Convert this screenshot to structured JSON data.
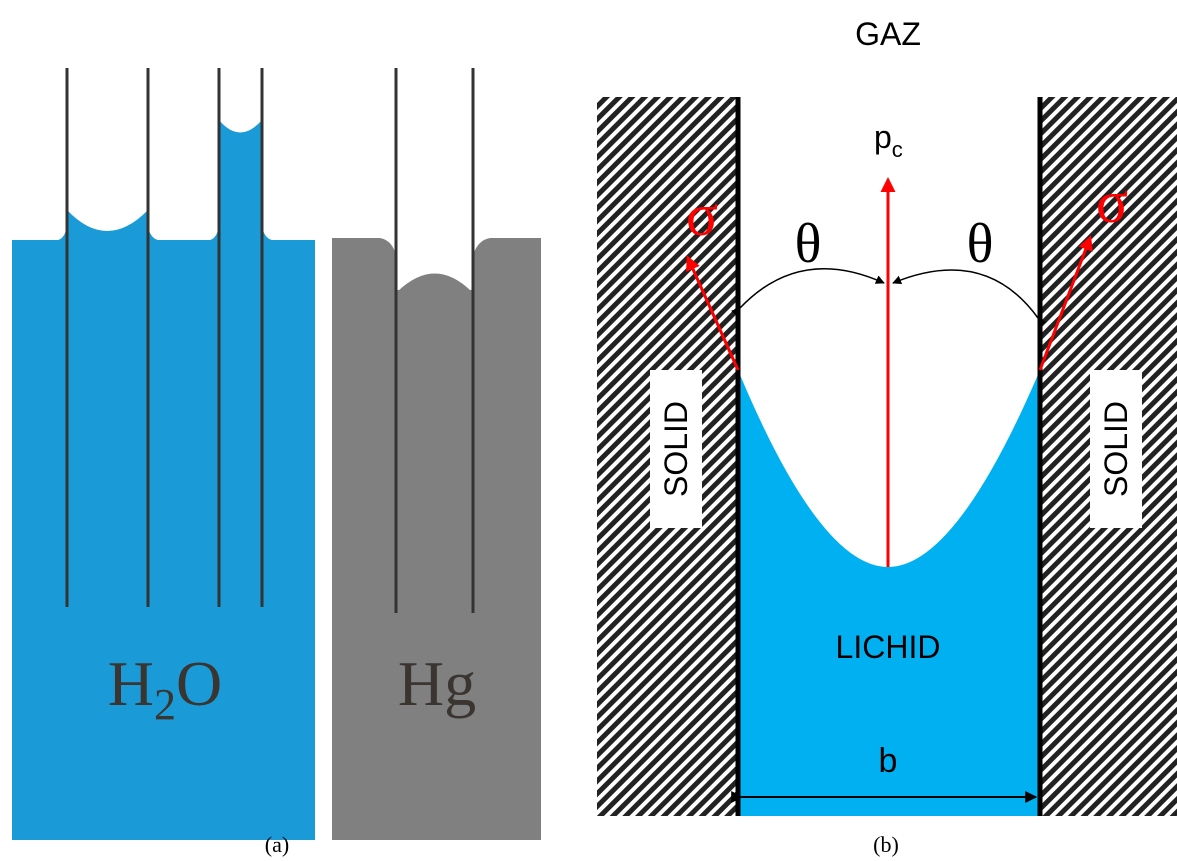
{
  "panel_a": {
    "water_label": {
      "main": "H",
      "sub": "2",
      "end": "O"
    },
    "mercury_label": "Hg",
    "caption": "(a)"
  },
  "panel_b": {
    "gas_label": "GAZ",
    "pressure_label": {
      "main": "p",
      "sub": "c"
    },
    "angle_left": "θ",
    "angle_right": "θ",
    "tension_left": "σ",
    "tension_right": "σ",
    "solid_left": "SOLID",
    "solid_right": "SOLID",
    "liquid_label": "LICHID",
    "width_label": "b",
    "caption": "(b)"
  }
}
